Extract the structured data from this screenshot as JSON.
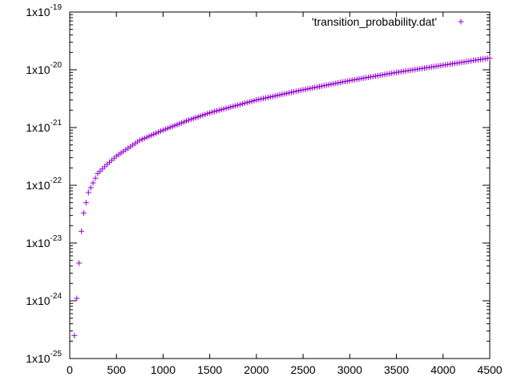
{
  "chart_data": {
    "type": "scatter",
    "title": "",
    "xlabel": "",
    "ylabel": "",
    "xlim": [
      0,
      4500
    ],
    "ylim": [
      1e-25,
      1e-19
    ],
    "y_scale": "log",
    "grid": false,
    "legend_position": "top-right",
    "marker": "plus",
    "x_ticks": [
      {
        "value": 0,
        "label": "0"
      },
      {
        "value": 500,
        "label": "500"
      },
      {
        "value": 1000,
        "label": "1000"
      },
      {
        "value": 1500,
        "label": "1500"
      },
      {
        "value": 2000,
        "label": "2000"
      },
      {
        "value": 2500,
        "label": "2500"
      },
      {
        "value": 3000,
        "label": "3000"
      },
      {
        "value": 3500,
        "label": "3500"
      },
      {
        "value": 4000,
        "label": "4000"
      },
      {
        "value": 4500,
        "label": "4500"
      }
    ],
    "y_ticks": [
      {
        "value": 1e-25,
        "base": "1x10",
        "exp": "-25"
      },
      {
        "value": 1e-24,
        "base": "1x10",
        "exp": "-24"
      },
      {
        "value": 1e-23,
        "base": "1x10",
        "exp": "-23"
      },
      {
        "value": 1e-22,
        "base": "1x10",
        "exp": "-22"
      },
      {
        "value": 1e-21,
        "base": "1x10",
        "exp": "-21"
      },
      {
        "value": 1e-20,
        "base": "1x10",
        "exp": "-20"
      },
      {
        "value": 1e-19,
        "base": "1x10",
        "exp": "-19"
      }
    ],
    "series": [
      {
        "name": "'transition_probability.dat'",
        "color": "#9400d3",
        "x": [
          50,
          75,
          100,
          125,
          150,
          175,
          200,
          250,
          300,
          400,
          500,
          750,
          1000,
          1250,
          1500,
          2000,
          2500,
          3000,
          3500,
          4000,
          4500
        ],
        "y": [
          2.5e-25,
          1.1e-24,
          4.5e-24,
          1.6e-23,
          3.3e-23,
          5e-23,
          7.5e-23,
          1.1e-22,
          1.6e-22,
          2.3e-22,
          3.2e-22,
          6e-22,
          9e-22,
          1.3e-21,
          1.8e-21,
          3e-21,
          4.5e-21,
          6.5e-21,
          9e-21,
          1.2e-20,
          1.6e-20
        ]
      }
    ]
  }
}
